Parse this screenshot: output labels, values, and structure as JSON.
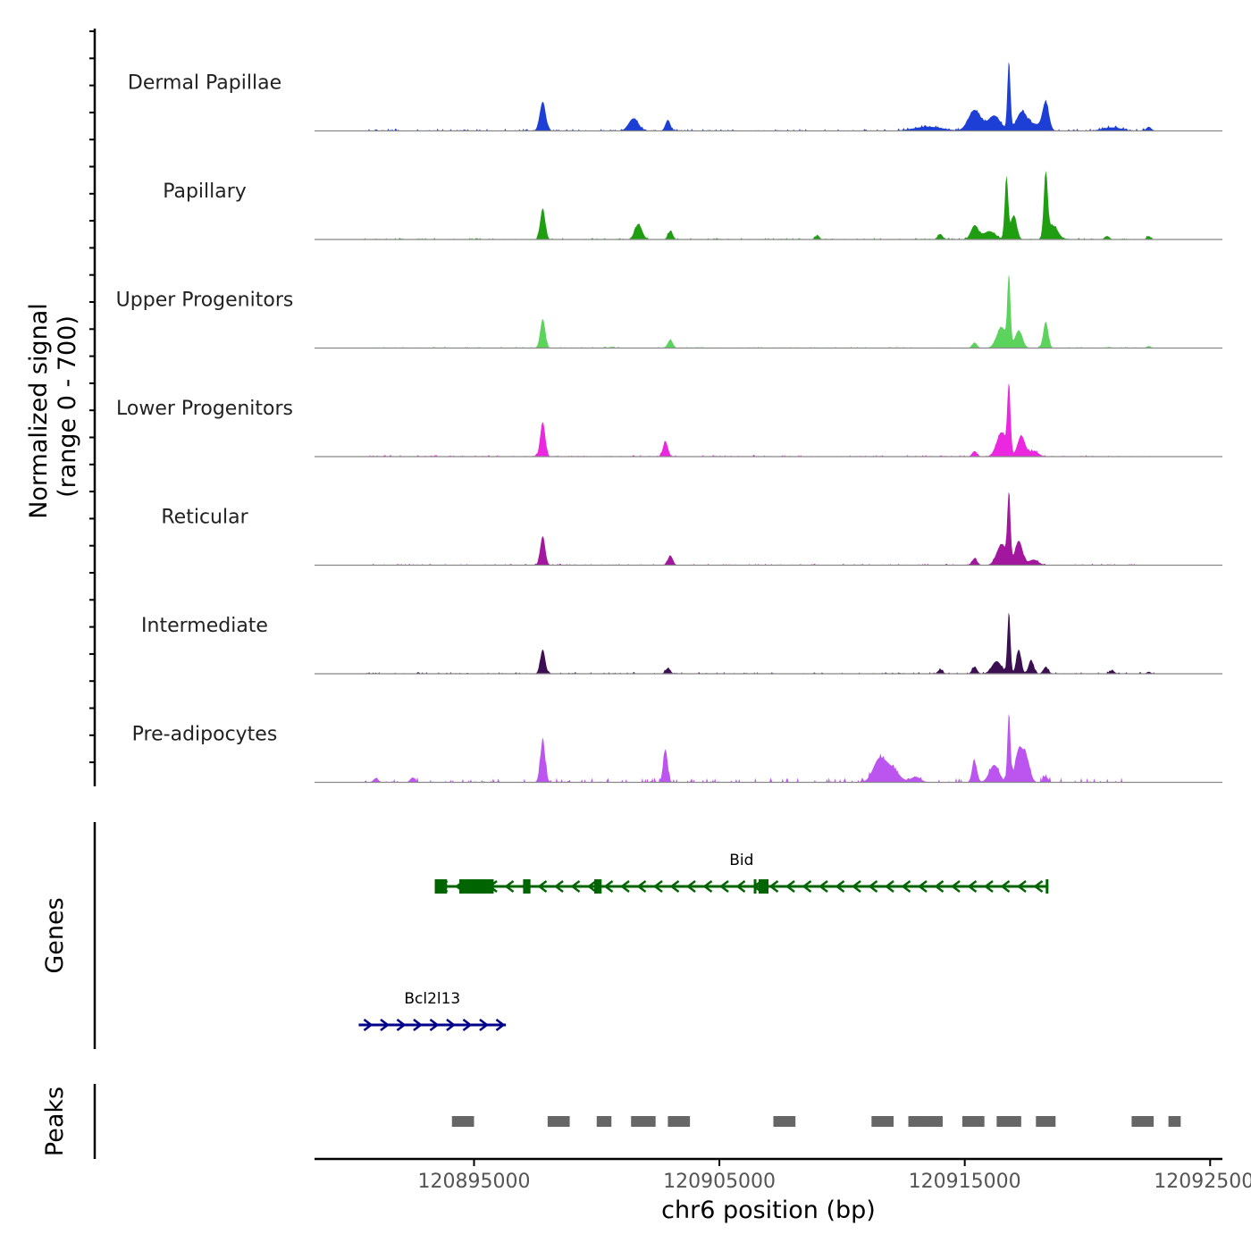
{
  "chart_data": {
    "type": "area",
    "title": "",
    "ylabel": "Normalized signal",
    "ylabel_range": "(range 0 - 700)",
    "ylim": [
      0,
      700
    ],
    "xlabel": "chr6 position (bp)",
    "xlim": [
      120888500,
      120925500
    ],
    "xticks": [
      120895000,
      120905000,
      120915000,
      120925000
    ],
    "xtick_labels": [
      "120895000",
      "120905000",
      "120915000",
      "120925000"
    ],
    "tracks": [
      {
        "name": "Dermal Papillae",
        "color": "#1d3fd6",
        "labelKey": "Dermal Papillae",
        "peaks": [
          [
            120897800,
            0.42,
            120
          ],
          [
            120901500,
            0.18,
            200
          ],
          [
            120902900,
            0.16,
            100
          ],
          [
            120915400,
            0.3,
            250
          ],
          [
            120916200,
            0.22,
            250
          ],
          [
            120916800,
            1.0,
            60
          ],
          [
            120917300,
            0.25,
            200
          ],
          [
            120918300,
            0.4,
            130
          ],
          [
            120917800,
            0.1,
            300
          ],
          [
            120913500,
            0.06,
            600
          ],
          [
            120921000,
            0.05,
            400
          ],
          [
            120922500,
            0.06,
            100
          ]
        ],
        "noise": 0.035,
        "noiseStart": 120890500,
        "noiseEnd": 120922800
      },
      {
        "name": "Papillary",
        "color": "#1f9e12",
        "labelKey": "Papillary",
        "peaks": [
          [
            120897800,
            0.45,
            100
          ],
          [
            120901700,
            0.22,
            150
          ],
          [
            120903000,
            0.12,
            100
          ],
          [
            120909000,
            0.06,
            80
          ],
          [
            120914000,
            0.08,
            100
          ],
          [
            120915400,
            0.2,
            150
          ],
          [
            120916700,
            0.9,
            70
          ],
          [
            120916000,
            0.12,
            250
          ],
          [
            120917000,
            0.35,
            120
          ],
          [
            120918300,
            0.92,
            80
          ],
          [
            120918600,
            0.2,
            200
          ],
          [
            120920800,
            0.05,
            100
          ],
          [
            120922500,
            0.05,
            80
          ]
        ],
        "noise": 0.025,
        "noiseStart": 120890500,
        "noiseEnd": 120922800
      },
      {
        "name": "Upper Progenitors",
        "color": "#5cd35c",
        "labelKey": "Upper Progenitors",
        "peaks": [
          [
            120897800,
            0.42,
            100
          ],
          [
            120903000,
            0.12,
            100
          ],
          [
            120915400,
            0.08,
            100
          ],
          [
            120916500,
            0.3,
            200
          ],
          [
            120916800,
            1.0,
            60
          ],
          [
            120917200,
            0.25,
            150
          ],
          [
            120918300,
            0.38,
            100
          ],
          [
            120922500,
            0.03,
            80
          ]
        ],
        "noise": 0.02,
        "noiseStart": 120890500,
        "noiseEnd": 120922800
      },
      {
        "name": "Lower Progenitors",
        "color": "#ec27e0",
        "labelKey": "Lower Progenitors",
        "peaks": [
          [
            120897800,
            0.5,
            100
          ],
          [
            120902800,
            0.22,
            100
          ],
          [
            120915400,
            0.08,
            100
          ],
          [
            120916500,
            0.35,
            200
          ],
          [
            120916800,
            1.0,
            60
          ],
          [
            120917300,
            0.3,
            150
          ],
          [
            120917800,
            0.08,
            200
          ]
        ],
        "noise": 0.025,
        "noiseStart": 120890500,
        "noiseEnd": 120922800
      },
      {
        "name": "Reticular",
        "color": "#a3169e",
        "labelKey": "Reticular",
        "peaks": [
          [
            120897800,
            0.42,
            100
          ],
          [
            120903000,
            0.14,
            100
          ],
          [
            120915400,
            0.1,
            100
          ],
          [
            120916500,
            0.3,
            200
          ],
          [
            120916800,
            1.0,
            60
          ],
          [
            120917200,
            0.35,
            150
          ],
          [
            120917800,
            0.08,
            200
          ]
        ],
        "noise": 0.02,
        "noiseStart": 120890500,
        "noiseEnd": 120922000
      },
      {
        "name": "Intermediate",
        "color": "#3c0e52",
        "labelKey": "Intermediate",
        "peaks": [
          [
            120897800,
            0.35,
            100
          ],
          [
            120902900,
            0.08,
            100
          ],
          [
            120914000,
            0.06,
            100
          ],
          [
            120915400,
            0.1,
            100
          ],
          [
            120916300,
            0.18,
            200
          ],
          [
            120916800,
            0.9,
            60
          ],
          [
            120917200,
            0.35,
            100
          ],
          [
            120917700,
            0.2,
            100
          ],
          [
            120918300,
            0.1,
            100
          ],
          [
            120921000,
            0.05,
            100
          ],
          [
            120922500,
            0.03,
            80
          ]
        ],
        "noise": 0.025,
        "noiseStart": 120890500,
        "noiseEnd": 120922800
      },
      {
        "name": "Pre-adipocytes",
        "color": "#bc55f0",
        "labelKey": "Pre-adipocytes",
        "peaks": [
          [
            120891000,
            0.06,
            100
          ],
          [
            120892500,
            0.07,
            100
          ],
          [
            120897800,
            0.6,
            100
          ],
          [
            120902800,
            0.48,
            90
          ],
          [
            120911500,
            0.3,
            250
          ],
          [
            120912000,
            0.2,
            300
          ],
          [
            120913000,
            0.08,
            200
          ],
          [
            120915400,
            0.3,
            100
          ],
          [
            120916200,
            0.25,
            200
          ],
          [
            120916800,
            1.0,
            60
          ],
          [
            120917200,
            0.45,
            150
          ],
          [
            120917500,
            0.35,
            150
          ],
          [
            120918300,
            0.08,
            100
          ]
        ],
        "noise": 0.07,
        "noiseStart": 120890500,
        "noiseEnd": 120921500
      }
    ],
    "genes_label": "Genes",
    "genes": [
      {
        "name": "Bid",
        "label": "Bid",
        "strand": "-",
        "color": "#006400",
        "start": 120893400,
        "end": 120918400,
        "exons": [
          [
            120893400,
            120893900
          ],
          [
            120894400,
            120895700
          ],
          [
            120895500,
            120895800
          ],
          [
            120897000,
            120897300
          ],
          [
            120899900,
            120900200
          ],
          [
            120906400,
            120906500
          ],
          [
            120906600,
            120907000
          ],
          [
            120918300,
            120918400
          ]
        ]
      },
      {
        "name": "Bcl2l13",
        "label": "Bcl2l13",
        "strand": "+",
        "color": "#00008b",
        "start": 120890300,
        "end": 120896300,
        "exons": []
      }
    ],
    "peaks_label": "Peaks",
    "peak_color": "#666666",
    "peak_regions": [
      [
        120894100,
        120895000
      ],
      [
        120898000,
        120898900
      ],
      [
        120900000,
        120900600
      ],
      [
        120901400,
        120902400
      ],
      [
        120902900,
        120903800
      ],
      [
        120907200,
        120908100
      ],
      [
        120911200,
        120912100
      ],
      [
        120912700,
        120913500
      ],
      [
        120913500,
        120914100
      ],
      [
        120914900,
        120915800
      ],
      [
        120916300,
        120917300
      ],
      [
        120917900,
        120918700
      ],
      [
        120921800,
        120922700
      ],
      [
        120923300,
        120923800
      ]
    ]
  }
}
